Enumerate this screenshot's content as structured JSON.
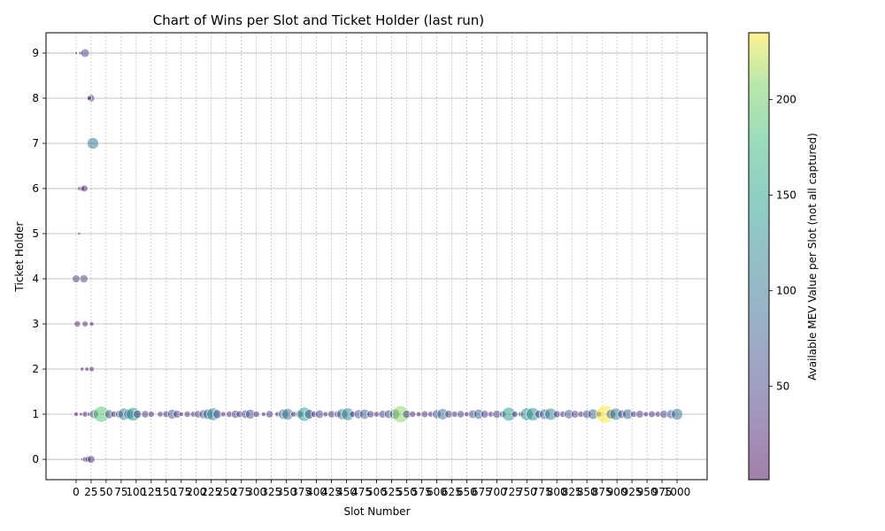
{
  "chart_data": {
    "type": "scatter",
    "title": "Chart of Wins per Slot and Ticket Holder (last run)",
    "xlabel": "Slot Number",
    "ylabel": "Ticket Holder",
    "colorbar_label": "Available MEV Value per Slot (not all captured)",
    "xlim": [
      -50,
      1050
    ],
    "ylim": [
      -0.45,
      9.45
    ],
    "xticks": [
      0,
      25,
      50,
      75,
      100,
      125,
      150,
      175,
      200,
      225,
      250,
      275,
      300,
      325,
      350,
      375,
      400,
      425,
      450,
      475,
      500,
      525,
      550,
      575,
      600,
      625,
      650,
      675,
      700,
      725,
      750,
      775,
      800,
      825,
      850,
      875,
      900,
      925,
      950,
      975,
      1000
    ],
    "xtick_labels": [
      "0",
      "25",
      "50",
      "75",
      "100",
      "125",
      "150",
      "175",
      "200",
      "225",
      "250",
      "275",
      "300",
      "325",
      "350",
      "375",
      "400",
      "425",
      "450",
      "475",
      "500",
      "525",
      "550",
      "575",
      "600",
      "625",
      "650",
      "675",
      "700",
      "725",
      "750",
      "775",
      "800",
      "825",
      "850",
      "875",
      "900",
      "925",
      "950",
      "975",
      "1000"
    ],
    "yticks": [
      0,
      1,
      2,
      3,
      4,
      5,
      6,
      7,
      8,
      9
    ],
    "ytick_labels": [
      "0",
      "1",
      "2",
      "3",
      "4",
      "5",
      "6",
      "7",
      "8",
      "9"
    ],
    "colorbar": {
      "min": 1,
      "max": 235,
      "ticks": [
        50,
        100,
        150,
        200
      ],
      "tick_labels": [
        "50",
        "100",
        "150",
        "200"
      ],
      "colormap": "viridis",
      "alpha": 0.5
    },
    "grid": {
      "horizontal": true,
      "vertical": "dashed at every slot tick",
      "color": "#a0a0a0"
    },
    "points": [
      {
        "x": 0,
        "y": 9,
        "v": 5
      },
      {
        "x": 8,
        "y": 9,
        "v": 10
      },
      {
        "x": 15,
        "y": 9,
        "v": 55
      },
      {
        "x": 25,
        "y": 8,
        "v": 40
      },
      {
        "x": 22,
        "y": 8,
        "v": 15
      },
      {
        "x": 28,
        "y": 7,
        "v": 100
      },
      {
        "x": 5,
        "y": 6,
        "v": 10
      },
      {
        "x": 10,
        "y": 6,
        "v": 20
      },
      {
        "x": 14,
        "y": 6,
        "v": 35
      },
      {
        "x": 5,
        "y": 5,
        "v": 3
      },
      {
        "x": 0,
        "y": 4,
        "v": 45
      },
      {
        "x": 13,
        "y": 4,
        "v": 50
      },
      {
        "x": 2,
        "y": 3,
        "v": 30
      },
      {
        "x": 15,
        "y": 3,
        "v": 25
      },
      {
        "x": 26,
        "y": 3,
        "v": 15
      },
      {
        "x": 10,
        "y": 2,
        "v": 10
      },
      {
        "x": 18,
        "y": 2,
        "v": 12
      },
      {
        "x": 26,
        "y": 2,
        "v": 20
      },
      {
        "x": 10,
        "y": 0,
        "v": 5
      },
      {
        "x": 15,
        "y": 0,
        "v": 20
      },
      {
        "x": 20,
        "y": 0,
        "v": 30
      },
      {
        "x": 25,
        "y": 0,
        "v": 45
      },
      {
        "x": 0,
        "y": 1,
        "v": 15
      },
      {
        "x": 8,
        "y": 1,
        "v": 8
      },
      {
        "x": 15,
        "y": 1,
        "v": 25
      },
      {
        "x": 22,
        "y": 1,
        "v": 12
      },
      {
        "x": 30,
        "y": 1,
        "v": 60
      },
      {
        "x": 42,
        "y": 1,
        "v": 190
      },
      {
        "x": 55,
        "y": 1,
        "v": 60
      },
      {
        "x": 63,
        "y": 1,
        "v": 30
      },
      {
        "x": 72,
        "y": 1,
        "v": 45
      },
      {
        "x": 80,
        "y": 1,
        "v": 110
      },
      {
        "x": 88,
        "y": 1,
        "v": 80
      },
      {
        "x": 95,
        "y": 1,
        "v": 140
      },
      {
        "x": 102,
        "y": 1,
        "v": 50
      },
      {
        "x": 115,
        "y": 1,
        "v": 40
      },
      {
        "x": 125,
        "y": 1,
        "v": 30
      },
      {
        "x": 140,
        "y": 1,
        "v": 25
      },
      {
        "x": 150,
        "y": 1,
        "v": 35
      },
      {
        "x": 160,
        "y": 1,
        "v": 70
      },
      {
        "x": 168,
        "y": 1,
        "v": 45
      },
      {
        "x": 175,
        "y": 1,
        "v": 15
      },
      {
        "x": 185,
        "y": 1,
        "v": 30
      },
      {
        "x": 195,
        "y": 1,
        "v": 25
      },
      {
        "x": 203,
        "y": 1,
        "v": 40
      },
      {
        "x": 212,
        "y": 1,
        "v": 60
      },
      {
        "x": 220,
        "y": 1,
        "v": 85
      },
      {
        "x": 228,
        "y": 1,
        "v": 120
      },
      {
        "x": 235,
        "y": 1,
        "v": 60
      },
      {
        "x": 245,
        "y": 1,
        "v": 20
      },
      {
        "x": 255,
        "y": 1,
        "v": 30
      },
      {
        "x": 265,
        "y": 1,
        "v": 50
      },
      {
        "x": 272,
        "y": 1,
        "v": 35
      },
      {
        "x": 282,
        "y": 1,
        "v": 55
      },
      {
        "x": 290,
        "y": 1,
        "v": 70
      },
      {
        "x": 300,
        "y": 1,
        "v": 30
      },
      {
        "x": 312,
        "y": 1,
        "v": 15
      },
      {
        "x": 322,
        "y": 1,
        "v": 40
      },
      {
        "x": 335,
        "y": 1,
        "v": 20
      },
      {
        "x": 345,
        "y": 1,
        "v": 80
      },
      {
        "x": 352,
        "y": 1,
        "v": 100
      },
      {
        "x": 362,
        "y": 1,
        "v": 25
      },
      {
        "x": 372,
        "y": 1,
        "v": 45
      },
      {
        "x": 380,
        "y": 1,
        "v": 150
      },
      {
        "x": 388,
        "y": 1,
        "v": 70
      },
      {
        "x": 396,
        "y": 1,
        "v": 30
      },
      {
        "x": 405,
        "y": 1,
        "v": 55
      },
      {
        "x": 415,
        "y": 1,
        "v": 20
      },
      {
        "x": 425,
        "y": 1,
        "v": 40
      },
      {
        "x": 435,
        "y": 1,
        "v": 35
      },
      {
        "x": 443,
        "y": 1,
        "v": 90
      },
      {
        "x": 452,
        "y": 1,
        "v": 120
      },
      {
        "x": 460,
        "y": 1,
        "v": 30
      },
      {
        "x": 470,
        "y": 1,
        "v": 60
      },
      {
        "x": 480,
        "y": 1,
        "v": 75
      },
      {
        "x": 490,
        "y": 1,
        "v": 40
      },
      {
        "x": 500,
        "y": 1,
        "v": 25
      },
      {
        "x": 510,
        "y": 1,
        "v": 45
      },
      {
        "x": 520,
        "y": 1,
        "v": 55
      },
      {
        "x": 530,
        "y": 1,
        "v": 80
      },
      {
        "x": 540,
        "y": 1,
        "v": 210
      },
      {
        "x": 550,
        "y": 1,
        "v": 50
      },
      {
        "x": 560,
        "y": 1,
        "v": 30
      },
      {
        "x": 570,
        "y": 1,
        "v": 20
      },
      {
        "x": 580,
        "y": 1,
        "v": 35
      },
      {
        "x": 590,
        "y": 1,
        "v": 25
      },
      {
        "x": 600,
        "y": 1,
        "v": 60
      },
      {
        "x": 610,
        "y": 1,
        "v": 95
      },
      {
        "x": 620,
        "y": 1,
        "v": 45
      },
      {
        "x": 630,
        "y": 1,
        "v": 30
      },
      {
        "x": 640,
        "y": 1,
        "v": 40
      },
      {
        "x": 650,
        "y": 1,
        "v": 20
      },
      {
        "x": 660,
        "y": 1,
        "v": 55
      },
      {
        "x": 670,
        "y": 1,
        "v": 75
      },
      {
        "x": 680,
        "y": 1,
        "v": 45
      },
      {
        "x": 690,
        "y": 1,
        "v": 25
      },
      {
        "x": 700,
        "y": 1,
        "v": 50
      },
      {
        "x": 710,
        "y": 1,
        "v": 35
      },
      {
        "x": 720,
        "y": 1,
        "v": 140
      },
      {
        "x": 730,
        "y": 1,
        "v": 30
      },
      {
        "x": 740,
        "y": 1,
        "v": 20
      },
      {
        "x": 750,
        "y": 1,
        "v": 120
      },
      {
        "x": 760,
        "y": 1,
        "v": 130
      },
      {
        "x": 770,
        "y": 1,
        "v": 50
      },
      {
        "x": 780,
        "y": 1,
        "v": 85
      },
      {
        "x": 790,
        "y": 1,
        "v": 110
      },
      {
        "x": 800,
        "y": 1,
        "v": 40
      },
      {
        "x": 810,
        "y": 1,
        "v": 30
      },
      {
        "x": 820,
        "y": 1,
        "v": 65
      },
      {
        "x": 830,
        "y": 1,
        "v": 45
      },
      {
        "x": 840,
        "y": 1,
        "v": 30
      },
      {
        "x": 850,
        "y": 1,
        "v": 55
      },
      {
        "x": 860,
        "y": 1,
        "v": 80
      },
      {
        "x": 870,
        "y": 1,
        "v": 25
      },
      {
        "x": 880,
        "y": 1,
        "v": 235
      },
      {
        "x": 890,
        "y": 1,
        "v": 70
      },
      {
        "x": 898,
        "y": 1,
        "v": 110
      },
      {
        "x": 908,
        "y": 1,
        "v": 55
      },
      {
        "x": 918,
        "y": 1,
        "v": 80
      },
      {
        "x": 928,
        "y": 1,
        "v": 30
      },
      {
        "x": 938,
        "y": 1,
        "v": 45
      },
      {
        "x": 948,
        "y": 1,
        "v": 20
      },
      {
        "x": 958,
        "y": 1,
        "v": 35
      },
      {
        "x": 968,
        "y": 1,
        "v": 25
      },
      {
        "x": 978,
        "y": 1,
        "v": 50
      },
      {
        "x": 990,
        "y": 1,
        "v": 60
      },
      {
        "x": 1000,
        "y": 1,
        "v": 100
      }
    ]
  }
}
